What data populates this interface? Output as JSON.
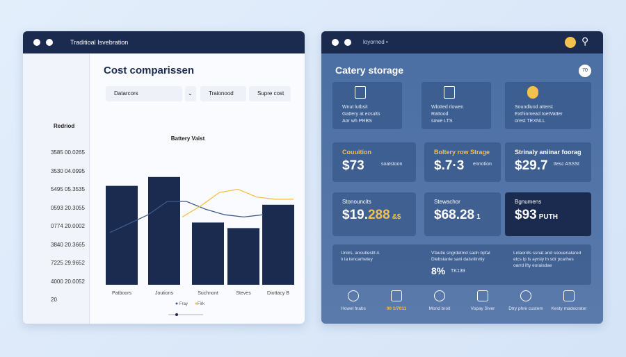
{
  "left": {
    "window_title": "Traditioal Isvebration",
    "title": "Cost comparissen",
    "dropdowns": [
      "Datarcors",
      "Traionood",
      "Supre cost"
    ],
    "sidebar_label": "Redriod",
    "sidebar_rows": [
      "3585 00.0265",
      "3530 04.0995",
      "5495 05.3535",
      "0593 20.3055",
      "0774 20.0002",
      "3840 20.3665",
      "7225 29.9652",
      "4000 20.0052",
      "20"
    ],
    "chart": {
      "title": "Battery Vaist",
      "categories": [
        "Patboors",
        "Joutions",
        "Suchnont",
        "Steves",
        "Diottacy B"
      ],
      "values": [
        89,
        97,
        56,
        51,
        72
      ],
      "color": "#1a2b4f",
      "series": [
        {
          "name": "Fray",
          "color": "#3d5a8a",
          "values": [
            47,
            55,
            63,
            75,
            75,
            68,
            63,
            61,
            63
          ]
        },
        {
          "name": "Firk",
          "color": "#f2c14e",
          "values": [
            61,
            71,
            83,
            86,
            79,
            77,
            77
          ]
        }
      ]
    }
  },
  "right": {
    "window_title": "loyorned •",
    "title": "Catery storage",
    "badge": "70",
    "top_cards": [
      [
        "Wnut lutbsit",
        "Gattery at ecsults",
        "Aor wh PRBS"
      ],
      [
        "Wlotted rlowen",
        "Rattood",
        "sowe LTS"
      ],
      [
        "Soundlund atterst",
        "Exthinmead toetVatter",
        "orest TEXNLL"
      ]
    ],
    "price_cards": [
      {
        "label": "Couuition",
        "value": "$73",
        "note": "soatstoon"
      },
      {
        "label": "Boltery row Strage",
        "value": "$.7·3",
        "note": "ennotion"
      },
      {
        "label": "Strinaly aniinar foorag",
        "value": "$29.7",
        "note": "ttesc ASSSt"
      }
    ],
    "total_cards": [
      {
        "label": "Stonouncits",
        "value": "$19.",
        "accent": "288",
        "note": "&$"
      },
      {
        "label": "Stewachor",
        "value": "$68.28",
        "accent": "",
        "note": "1"
      },
      {
        "label": "Bgnumens",
        "value": "$93",
        "accent": "",
        "note": "PUTH"
      }
    ],
    "info": [
      [
        "Uniirs. anoutlestlt A",
        "lı la tencarhetey"
      ],
      [
        "Vfautle sngrdetmd sadn bpfal",
        "Dlebstanle sanl dalsnlirvtiy"
      ],
      [
        "Lnlaonits ssnat and soouenalared",
        "etcs lp ls ayrsly ln sdr pcarhes",
        "oarrd ifty eoraisdae"
      ]
    ],
    "info_stat": "8%",
    "info_stat_note": "TK139",
    "icons": [
      "Howel fnabs",
      "00 1/7011",
      "Mond broit",
      "Vopay Siver",
      "Dtry phre custem",
      "Kesty madecrater"
    ]
  }
}
